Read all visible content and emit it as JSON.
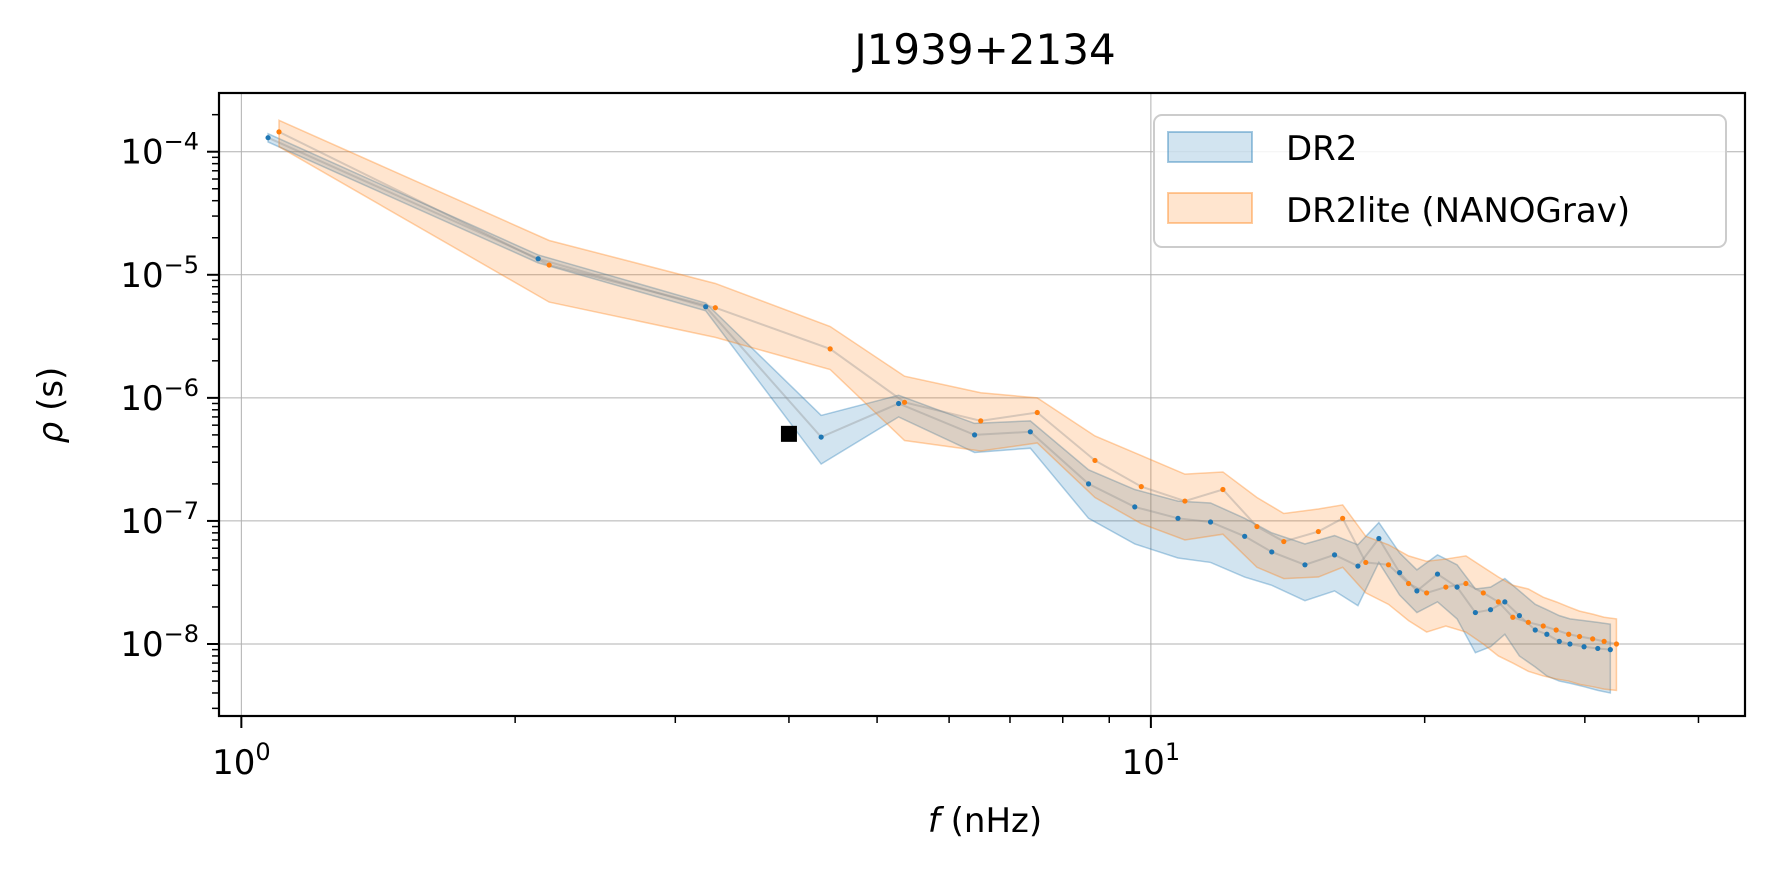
{
  "chart_data": {
    "type": "area",
    "title": "J1939+2134",
    "xlabel": "f (nHz)",
    "ylabel": "ρ (s)",
    "xscale": "log",
    "yscale": "log",
    "xlim": [
      0.945,
      45.0
    ],
    "ylim": [
      2.6e-09,
      0.0003
    ],
    "grid": true,
    "legend_position": "top-right",
    "x_ticks": [
      {
        "value": 1,
        "base": "10",
        "exp": "0"
      },
      {
        "value": 10,
        "base": "10",
        "exp": "1"
      }
    ],
    "y_ticks": [
      {
        "value": 0.0001,
        "base": "10",
        "exp": "−4"
      },
      {
        "value": 1e-05,
        "base": "10",
        "exp": "−5"
      },
      {
        "value": 1e-06,
        "base": "10",
        "exp": "−6"
      },
      {
        "value": 1e-07,
        "base": "10",
        "exp": "−7"
      },
      {
        "value": 1e-08,
        "base": "10",
        "exp": "−8"
      }
    ],
    "series": [
      {
        "name": "DR2",
        "color": "#1f77b4",
        "band_alpha": 0.2,
        "x": [
          1.07,
          2.12,
          3.24,
          4.34,
          5.28,
          6.4,
          7.37,
          8.54,
          9.6,
          10.71,
          11.63,
          12.68,
          13.58,
          14.77,
          15.92,
          16.89,
          17.81,
          18.77,
          19.61,
          20.66,
          21.71,
          22.74,
          23.63,
          24.5,
          25.42,
          26.46,
          27.25,
          28.12,
          28.89,
          29.94,
          31.0,
          32.0
        ],
        "values": [
          0.00013,
          1.35e-05,
          5.5e-06,
          4.8e-07,
          9e-07,
          5e-07,
          5.3e-07,
          2e-07,
          1.3e-07,
          1.05e-07,
          9.8e-08,
          7.5e-08,
          5.6e-08,
          4.4e-08,
          5.3e-08,
          4.3e-08,
          7.2e-08,
          3.8e-08,
          2.7e-08,
          3.7e-08,
          2.9e-08,
          1.8e-08,
          1.9e-08,
          2.2e-08,
          1.7e-08,
          1.3e-08,
          1.2e-08,
          1.05e-08,
          1e-08,
          9.5e-09,
          9.2e-09,
          9e-09
        ],
        "lower": [
          0.00012,
          1.25e-05,
          5.1e-06,
          2.9e-07,
          7e-07,
          3.6e-07,
          3.9e-07,
          1.05e-07,
          6.5e-08,
          5e-08,
          4.6e-08,
          3.5e-08,
          3e-08,
          2.25e-08,
          2.7e-08,
          2.05e-08,
          4.6e-08,
          2.5e-08,
          1.8e-08,
          2.2e-08,
          1.6e-08,
          8.5e-09,
          9.5e-09,
          1.2e-08,
          8e-09,
          6.5e-09,
          5.5e-09,
          5e-09,
          4.8e-09,
          4.5e-09,
          4.2e-09,
          4e-09
        ],
        "upper": [
          0.00014,
          1.45e-05,
          5.9e-06,
          7.2e-07,
          1.05e-06,
          6.2e-07,
          6.5e-07,
          2.6e-07,
          1.8e-07,
          1.45e-07,
          1.4e-07,
          1.05e-07,
          8e-08,
          6.5e-08,
          7.6e-08,
          6.4e-08,
          9.7e-08,
          5.5e-08,
          4e-08,
          5.3e-08,
          4.4e-08,
          2.8e-08,
          2.9e-08,
          3.4e-08,
          2.7e-08,
          2.1e-08,
          1.9e-08,
          1.7e-08,
          1.6e-08,
          1.55e-08,
          1.5e-08,
          1.45e-08
        ]
      },
      {
        "name": "DR2lite (NANOGrav)",
        "color": "#ff7f0e",
        "band_alpha": 0.2,
        "x": [
          1.1,
          2.18,
          3.32,
          4.44,
          5.36,
          6.5,
          7.5,
          8.68,
          9.76,
          10.9,
          12.0,
          13.08,
          14.0,
          15.28,
          16.25,
          17.23,
          18.25,
          19.2,
          20.1,
          21.1,
          22.2,
          23.2,
          24.1,
          25.0,
          26.0,
          27.0,
          27.9,
          28.8,
          29.6,
          30.6,
          31.5,
          32.5
        ],
        "values": [
          0.000145,
          1.2e-05,
          5.4e-06,
          2.5e-06,
          9.2e-07,
          6.5e-07,
          7.6e-07,
          3.1e-07,
          1.9e-07,
          1.45e-07,
          1.8e-07,
          9e-08,
          6.8e-08,
          8.2e-08,
          1.05e-07,
          4.6e-08,
          4.4e-08,
          3.1e-08,
          2.6e-08,
          2.9e-08,
          3.1e-08,
          2.6e-08,
          2.2e-08,
          1.65e-08,
          1.5e-08,
          1.4e-08,
          1.3e-08,
          1.2e-08,
          1.15e-08,
          1.1e-08,
          1.05e-08,
          1e-08
        ],
        "lower": [
          0.00011,
          6e-06,
          3.1e-06,
          1.7e-06,
          4.5e-07,
          3.7e-07,
          4.3e-07,
          1.55e-07,
          9.5e-08,
          7e-08,
          7.8e-08,
          4.2e-08,
          3.4e-08,
          3.5e-08,
          4.2e-08,
          2.6e-08,
          2.1e-08,
          1.55e-08,
          1.25e-08,
          1.4e-08,
          1.25e-08,
          1e-08,
          8e-09,
          7e-09,
          6e-09,
          5.5e-09,
          5.2e-09,
          5e-09,
          4.7e-09,
          4.5e-09,
          4.3e-09,
          4.2e-09
        ],
        "upper": [
          0.00018,
          1.9e-05,
          8.5e-06,
          3.8e-06,
          1.5e-06,
          1.1e-06,
          1e-06,
          4.9e-07,
          3.4e-07,
          2.4e-07,
          2.5e-07,
          1.55e-07,
          1.15e-07,
          1.25e-07,
          1.35e-07,
          7.5e-08,
          6.4e-08,
          5.2e-08,
          4.7e-08,
          4.9e-08,
          5.2e-08,
          4.2e-08,
          3.5e-08,
          3e-08,
          2.8e-08,
          2.4e-08,
          2.2e-08,
          2e-08,
          1.85e-08,
          1.75e-08,
          1.65e-08,
          1.6e-08
        ]
      }
    ],
    "annotations": [
      {
        "type": "square-marker",
        "x": 4.0,
        "y": 5.1e-07,
        "color": "#000000"
      }
    ]
  }
}
